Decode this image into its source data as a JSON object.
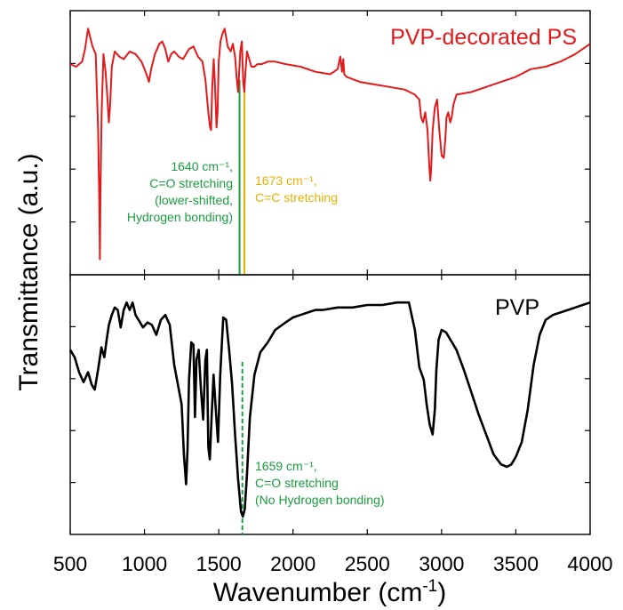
{
  "chart_data": {
    "type": "line",
    "xlabel": "Wavenumber (cm",
    "xlabel_sup": "-1",
    "xlabel_close": ")",
    "ylabel": "Transmittance (a.u.)",
    "xlim": [
      500,
      4000
    ],
    "ylim": [
      0,
      1
    ],
    "x_ticks": [
      500,
      1000,
      1500,
      2000,
      2500,
      3000,
      3500,
      4000
    ],
    "grid": false,
    "panels": [
      {
        "series_name": "PVP-decorated PS",
        "color": "#e31a1c",
        "x": [
          500,
          540,
          580,
          600,
          620,
          650,
          672,
          688,
          696,
          700,
          704,
          712,
          724,
          738,
          750,
          760,
          768,
          780,
          800,
          830,
          860,
          900,
          940,
          980,
          1000,
          1020,
          1030,
          1045,
          1070,
          1100,
          1120,
          1140,
          1160,
          1180,
          1200,
          1230,
          1260,
          1300,
          1330,
          1360,
          1390,
          1410,
          1430,
          1442,
          1448,
          1456,
          1466,
          1475,
          1485,
          1492,
          1500,
          1512,
          1525,
          1540,
          1560,
          1580,
          1595,
          1610,
          1620,
          1630,
          1645,
          1655,
          1665,
          1672,
          1680,
          1690,
          1705,
          1720,
          1740,
          1760,
          1790,
          1830,
          1880,
          1950,
          2050,
          2150,
          2250,
          2300,
          2318,
          2330,
          2338,
          2345,
          2360,
          2450,
          2550,
          2650,
          2750,
          2820,
          2850,
          2862,
          2875,
          2890,
          2905,
          2918,
          2924,
          2930,
          2940,
          2955,
          2970,
          2985,
          3000,
          3015,
          3026,
          3033,
          3045,
          3058,
          3068,
          3080,
          3100,
          3200,
          3300,
          3400,
          3500,
          3600,
          3700,
          3800,
          3900,
          4000
        ],
        "y": [
          0.81,
          0.8,
          0.82,
          0.87,
          0.95,
          0.88,
          0.85,
          0.55,
          0.25,
          0.04,
          0.32,
          0.62,
          0.85,
          0.78,
          0.68,
          0.58,
          0.64,
          0.8,
          0.86,
          0.84,
          0.83,
          0.86,
          0.85,
          0.82,
          0.79,
          0.76,
          0.74,
          0.79,
          0.85,
          0.89,
          0.9,
          0.87,
          0.82,
          0.85,
          0.86,
          0.84,
          0.83,
          0.87,
          0.88,
          0.84,
          0.82,
          0.75,
          0.62,
          0.56,
          0.55,
          0.72,
          0.83,
          0.72,
          0.56,
          0.62,
          0.82,
          0.9,
          0.93,
          0.95,
          0.88,
          0.86,
          0.89,
          0.84,
          0.76,
          0.7,
          0.86,
          0.9,
          0.74,
          0.7,
          0.78,
          0.86,
          0.83,
          0.8,
          0.8,
          0.81,
          0.81,
          0.82,
          0.82,
          0.81,
          0.8,
          0.78,
          0.77,
          0.79,
          0.84,
          0.78,
          0.83,
          0.77,
          0.76,
          0.74,
          0.73,
          0.72,
          0.71,
          0.69,
          0.67,
          0.6,
          0.58,
          0.62,
          0.55,
          0.4,
          0.35,
          0.4,
          0.55,
          0.64,
          0.67,
          0.55,
          0.45,
          0.44,
          0.52,
          0.6,
          0.62,
          0.58,
          0.6,
          0.65,
          0.69,
          0.7,
          0.72,
          0.74,
          0.76,
          0.79,
          0.8,
          0.82,
          0.85,
          0.89
        ]
      },
      {
        "series_name": "PVP",
        "color": "#000000",
        "x": [
          500,
          530,
          560,
          590,
          620,
          645,
          665,
          690,
          710,
          730,
          745,
          760,
          780,
          800,
          820,
          840,
          860,
          880,
          900,
          920,
          940,
          960,
          990,
          1020,
          1050,
          1080,
          1110,
          1140,
          1170,
          1200,
          1225,
          1250,
          1265,
          1280,
          1290,
          1300,
          1315,
          1330,
          1340,
          1350,
          1365,
          1380,
          1395,
          1410,
          1420,
          1430,
          1440,
          1452,
          1465,
          1480,
          1495,
          1510,
          1530,
          1550,
          1570,
          1590,
          1610,
          1630,
          1650,
          1662,
          1675,
          1690,
          1710,
          1740,
          1780,
          1830,
          1880,
          1950,
          2000,
          2050,
          2100,
          2150,
          2200,
          2300,
          2400,
          2500,
          2600,
          2700,
          2780,
          2820,
          2850,
          2880,
          2900,
          2920,
          2940,
          2955,
          2965,
          2980,
          3000,
          3030,
          3060,
          3100,
          3150,
          3200,
          3250,
          3300,
          3350,
          3400,
          3440,
          3470,
          3500,
          3540,
          3580,
          3620,
          3660,
          3700,
          3750,
          3800,
          3850,
          3900,
          3950,
          4000
        ],
        "y": [
          0.72,
          0.69,
          0.63,
          0.59,
          0.63,
          0.58,
          0.56,
          0.65,
          0.73,
          0.69,
          0.76,
          0.82,
          0.86,
          0.89,
          0.88,
          0.81,
          0.88,
          0.91,
          0.88,
          0.91,
          0.86,
          0.84,
          0.81,
          0.83,
          0.82,
          0.78,
          0.84,
          0.86,
          0.82,
          0.66,
          0.58,
          0.5,
          0.3,
          0.18,
          0.32,
          0.6,
          0.75,
          0.74,
          0.45,
          0.68,
          0.72,
          0.56,
          0.44,
          0.68,
          0.72,
          0.33,
          0.28,
          0.45,
          0.62,
          0.48,
          0.35,
          0.62,
          0.85,
          0.84,
          0.72,
          0.58,
          0.38,
          0.2,
          0.07,
          0.05,
          0.08,
          0.22,
          0.45,
          0.62,
          0.71,
          0.75,
          0.8,
          0.83,
          0.85,
          0.86,
          0.87,
          0.88,
          0.88,
          0.89,
          0.89,
          0.9,
          0.9,
          0.91,
          0.91,
          0.8,
          0.65,
          0.6,
          0.5,
          0.42,
          0.38,
          0.48,
          0.64,
          0.76,
          0.8,
          0.79,
          0.76,
          0.72,
          0.64,
          0.55,
          0.46,
          0.38,
          0.3,
          0.26,
          0.25,
          0.26,
          0.29,
          0.35,
          0.48,
          0.66,
          0.78,
          0.84,
          0.86,
          0.87,
          0.88,
          0.89,
          0.9,
          0.91
        ]
      }
    ],
    "markers": [
      {
        "x": 1640,
        "panel": 0,
        "color": "#1a9e3f",
        "style": "solid"
      },
      {
        "x": 1673,
        "panel": 0,
        "color": "#e8b000",
        "style": "solid"
      },
      {
        "x": 1659,
        "panel": 1,
        "color": "#1a9e3f",
        "style": "dashed"
      }
    ],
    "annotations": [
      {
        "color": "#1a9e3f",
        "panel": 0,
        "lines": [
          "1640 cm⁻¹,",
          "C=O stretching",
          "(lower-shifted,",
          "Hydrogen bonding)"
        ]
      },
      {
        "color": "#e8b000",
        "panel": 0,
        "lines": [
          "1673 cm⁻¹,",
          "C=C stretching"
        ]
      },
      {
        "color": "#1a9e3f",
        "panel": 1,
        "lines": [
          "1659 cm⁻¹,",
          "C=O stretching",
          "(No Hydrogen bonding)"
        ]
      }
    ]
  }
}
